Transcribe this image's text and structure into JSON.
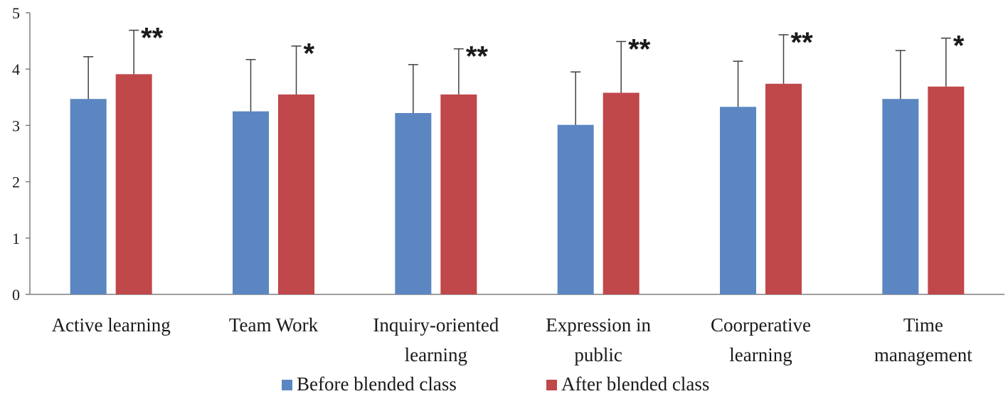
{
  "chart_data": {
    "type": "bar",
    "categories": [
      [
        "Active learning"
      ],
      [
        "Team Work"
      ],
      [
        "Inquiry-oriented",
        "learning"
      ],
      [
        "Expression in",
        "public"
      ],
      [
        "Coorperative",
        "learning"
      ],
      [
        "Time",
        "management"
      ]
    ],
    "series": [
      {
        "name": "Before  blended class",
        "color": "#5b86c2",
        "values": [
          3.47,
          3.25,
          3.22,
          3.01,
          3.33,
          3.47
        ],
        "error": [
          0.75,
          0.92,
          0.86,
          0.94,
          0.81,
          0.86
        ]
      },
      {
        "name": "After  blended class",
        "color": "#c0474a",
        "values": [
          3.91,
          3.55,
          3.55,
          3.58,
          3.74,
          3.69
        ],
        "error": [
          0.78,
          0.86,
          0.81,
          0.91,
          0.87,
          0.86
        ]
      }
    ],
    "significance": [
      "**",
      "*",
      "**",
      "**",
      "**",
      "*"
    ],
    "ylim": [
      0,
      5
    ],
    "yticks": [
      0,
      1,
      2,
      3,
      4,
      5
    ],
    "xlabel": "",
    "ylabel": "",
    "title": "",
    "grid": false,
    "error_bars": "upper",
    "legend_position": "bottom"
  }
}
